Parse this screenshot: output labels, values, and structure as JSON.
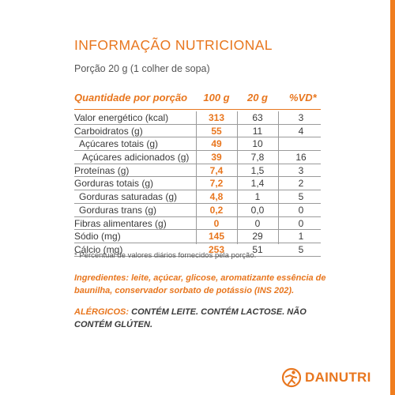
{
  "title": "INFORMAÇÃO NUTRICIONAL",
  "portion": "Porção 20 g (1 colher de sopa)",
  "table": {
    "headers": {
      "label": "Quantidade por porção",
      "per100": "100 g",
      "per20": "20 g",
      "vd": "%VD*"
    },
    "rows": [
      {
        "label": "Valor energético (kcal)",
        "per100": "313",
        "per20": "63",
        "vd": "3"
      },
      {
        "label": "Carboidratos (g)",
        "per100": "55",
        "per20": "11",
        "vd": "4"
      },
      {
        "label": "Açúcares totais (g)",
        "per100": "49",
        "per20": "10",
        "vd": ""
      },
      {
        "label": "Açúcares adicionados (g)",
        "per100": "39",
        "per20": "7,8",
        "vd": "16"
      },
      {
        "label": "Proteínas (g)",
        "per100": "7,4",
        "per20": "1,5",
        "vd": "3"
      },
      {
        "label": "Gorduras totais (g)",
        "per100": "7,2",
        "per20": "1,4",
        "vd": "2"
      },
      {
        "label": "Gorduras saturadas (g)",
        "per100": "4,8",
        "per20": "1",
        "vd": "5"
      },
      {
        "label": "Gorduras trans (g)",
        "per100": "0,2",
        "per20": "0,0",
        "vd": "0"
      },
      {
        "label": "Fibras alimentares (g)",
        "per100": "0",
        "per20": "0",
        "vd": "0"
      },
      {
        "label": "Sódio (mg)",
        "per100": "145",
        "per20": "29",
        "vd": "1"
      },
      {
        "label": "Cálcio (mg)",
        "per100": "253",
        "per20": "51",
        "vd": "5"
      }
    ]
  },
  "footnote": "* Percentual de valores diários fornecidos pela porção.",
  "ingredients": "Ingredientes: leite, açúcar, glicose, aromatizante essência de baunilha, conservador sorbato de potássio (INS 202).",
  "allergens": {
    "lead": "ALÉRGICOS:",
    "text": " CONTÉM LEITE. CONTÉM LACTOSE. NÃO CONTÉM GLÚTEN."
  },
  "brand": {
    "name": "DAINUTRI",
    "icon": "runner-logo-icon"
  },
  "colors": {
    "accent": "#e8761e",
    "text": "#3a3a3a",
    "rule": "#9a9a9a"
  }
}
